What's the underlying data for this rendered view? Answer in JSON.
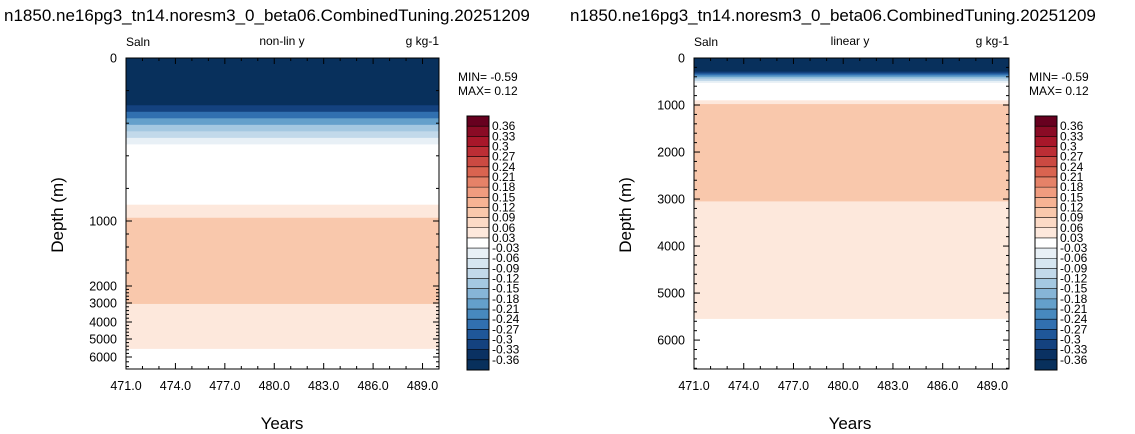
{
  "chart_data": [
    {
      "type": "heatmap",
      "title": "n1850.ne16pg3_tn14.noresm3_0_beta06.CombinedTuning.20251209",
      "left_label": "Saln",
      "center_label": "non-lin y",
      "right_label": "g kg-1",
      "xlabel": "Years",
      "ylabel": "Depth (m)",
      "y_scale": "non-linear",
      "y_reversed": true,
      "xlim": [
        471.0,
        490.0
      ],
      "ylim": [
        0,
        6500
      ],
      "x_ticks": [
        "471.0",
        "474.0",
        "477.0",
        "480.0",
        "483.0",
        "486.0",
        "489.0"
      ],
      "y_ticks": [
        "0",
        "1000",
        "2000",
        "3000",
        "4000",
        "5000",
        "6000"
      ],
      "min_text": "MIN= -0.59",
      "max_text": "MAX=  0.12",
      "depth_profile": [
        {
          "depth": 0,
          "value": -0.37
        },
        {
          "depth": 180,
          "value": -0.37
        },
        {
          "depth": 290,
          "value": -0.33
        },
        {
          "depth": 330,
          "value": -0.27
        },
        {
          "depth": 370,
          "value": -0.21
        },
        {
          "depth": 410,
          "value": -0.15
        },
        {
          "depth": 450,
          "value": -0.1
        },
        {
          "depth": 490,
          "value": -0.06
        },
        {
          "depth": 530,
          "value": -0.02
        },
        {
          "depth": 600,
          "value": 0.02
        },
        {
          "depth": 900,
          "value": 0.05
        },
        {
          "depth": 980,
          "value": 0.09
        },
        {
          "depth": 3000,
          "value": 0.09
        },
        {
          "depth": 3050,
          "value": 0.05
        },
        {
          "depth": 5500,
          "value": 0.05
        },
        {
          "depth": 5550,
          "value": 0.01
        },
        {
          "depth": 6500,
          "value": 0.01
        }
      ]
    },
    {
      "type": "heatmap",
      "title": "n1850.ne16pg3_tn14.noresm3_0_beta06.CombinedTuning.20251209",
      "left_label": "Saln",
      "center_label": "linear y",
      "right_label": "g kg-1",
      "xlabel": "Years",
      "ylabel": "Depth (m)",
      "y_scale": "linear",
      "y_reversed": true,
      "xlim": [
        471.0,
        490.0
      ],
      "ylim": [
        0,
        6700
      ],
      "x_ticks": [
        "471.0",
        "474.0",
        "477.0",
        "480.0",
        "483.0",
        "486.0",
        "489.0"
      ],
      "y_ticks": [
        "0",
        "1000",
        "2000",
        "3000",
        "4000",
        "5000",
        "6000"
      ],
      "min_text": "MIN= -0.59",
      "max_text": "MAX=  0.12",
      "depth_profile": [
        {
          "depth": 0,
          "value": -0.37
        },
        {
          "depth": 180,
          "value": -0.37
        },
        {
          "depth": 290,
          "value": -0.33
        },
        {
          "depth": 330,
          "value": -0.27
        },
        {
          "depth": 370,
          "value": -0.21
        },
        {
          "depth": 410,
          "value": -0.15
        },
        {
          "depth": 450,
          "value": -0.1
        },
        {
          "depth": 490,
          "value": -0.06
        },
        {
          "depth": 530,
          "value": -0.02
        },
        {
          "depth": 600,
          "value": 0.02
        },
        {
          "depth": 900,
          "value": 0.05
        },
        {
          "depth": 980,
          "value": 0.09
        },
        {
          "depth": 3000,
          "value": 0.09
        },
        {
          "depth": 3050,
          "value": 0.05
        },
        {
          "depth": 5500,
          "value": 0.05
        },
        {
          "depth": 5550,
          "value": 0.01
        },
        {
          "depth": 6700,
          "value": 0.01
        }
      ]
    }
  ],
  "colorbar": {
    "labels": [
      "0.36",
      "0.33",
      "0.3",
      "0.27",
      "0.24",
      "0.21",
      "0.18",
      "0.15",
      "0.12",
      "0.09",
      "0.06",
      "0.03",
      "-0.03",
      "-0.06",
      "-0.09",
      "-0.12",
      "-0.15",
      "-0.18",
      "-0.21",
      "-0.24",
      "-0.27",
      "-0.3",
      "-0.33",
      "-0.36"
    ],
    "colors": [
      "#67001f",
      "#8a0b25",
      "#a8172a",
      "#bc2e35",
      "#cb4a42",
      "#d96450",
      "#e58268",
      "#f09c7f",
      "#f6b394",
      "#f9c8ac",
      "#fcdac6",
      "#fde8dc",
      "#ffffff",
      "#e8f0f6",
      "#d6e6f1",
      "#c2d9ea",
      "#a4c8e1",
      "#86b5d7",
      "#64a0cb",
      "#4789be",
      "#3170b0",
      "#1f5799",
      "#14427f",
      "#0a3162",
      "#08305c"
    ]
  }
}
